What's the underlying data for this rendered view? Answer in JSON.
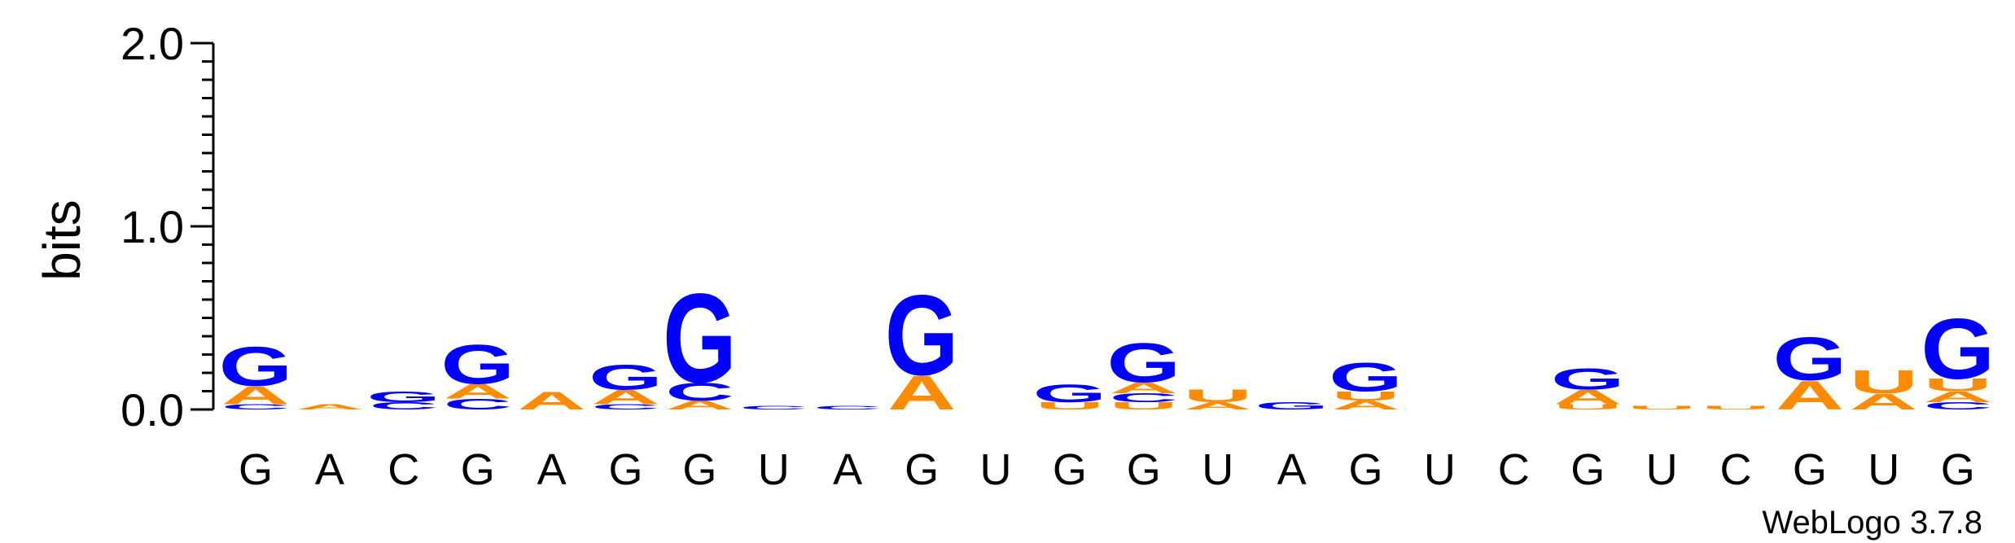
{
  "chart_data": {
    "type": "sequence-logo",
    "ylabel": "bits",
    "ylim": [
      0,
      2.0
    ],
    "yticks": [
      "0.0",
      "1.0",
      "2.0"
    ],
    "yminor_step": 0.1,
    "colors": {
      "G": "#0000ff",
      "A": "#ff8c00",
      "C": "#0000ff",
      "U": "#ff8c00"
    },
    "positions": [
      {
        "label": "G",
        "stack": [
          {
            "letter": "C",
            "bits": 0.03
          },
          {
            "letter": "A",
            "bits": 0.1
          },
          {
            "letter": "G",
            "bits": 0.22
          }
        ]
      },
      {
        "label": "A",
        "stack": [
          {
            "letter": "A",
            "bits": 0.03
          }
        ]
      },
      {
        "label": "C",
        "stack": [
          {
            "letter": "C",
            "bits": 0.04
          },
          {
            "letter": "G",
            "bits": 0.06
          }
        ]
      },
      {
        "label": "G",
        "stack": [
          {
            "letter": "C",
            "bits": 0.06
          },
          {
            "letter": "A",
            "bits": 0.08
          },
          {
            "letter": "G",
            "bits": 0.22
          }
        ]
      },
      {
        "label": "A",
        "stack": [
          {
            "letter": "A",
            "bits": 0.1
          }
        ]
      },
      {
        "label": "G",
        "stack": [
          {
            "letter": "C",
            "bits": 0.03
          },
          {
            "letter": "A",
            "bits": 0.08
          },
          {
            "letter": "G",
            "bits": 0.14
          }
        ]
      },
      {
        "label": "G",
        "stack": [
          {
            "letter": "A",
            "bits": 0.05
          },
          {
            "letter": "C",
            "bits": 0.1
          },
          {
            "letter": "G",
            "bits": 0.5
          }
        ]
      },
      {
        "label": "U",
        "stack": [
          {
            "letter": "C",
            "bits": 0.02
          }
        ]
      },
      {
        "label": "A",
        "stack": [
          {
            "letter": "C",
            "bits": 0.02
          }
        ]
      },
      {
        "label": "G",
        "stack": [
          {
            "letter": "A",
            "bits": 0.19
          },
          {
            "letter": "G",
            "bits": 0.45
          }
        ]
      },
      {
        "label": "U",
        "stack": []
      },
      {
        "label": "G",
        "stack": [
          {
            "letter": "U",
            "bits": 0.04
          },
          {
            "letter": "G",
            "bits": 0.1
          }
        ]
      },
      {
        "label": "G",
        "stack": [
          {
            "letter": "U",
            "bits": 0.04
          },
          {
            "letter": "C",
            "bits": 0.05
          },
          {
            "letter": "A",
            "bits": 0.06
          },
          {
            "letter": "G",
            "bits": 0.22
          }
        ]
      },
      {
        "label": "U",
        "stack": [
          {
            "letter": "A",
            "bits": 0.04
          },
          {
            "letter": "U",
            "bits": 0.07
          }
        ]
      },
      {
        "label": "A",
        "stack": [
          {
            "letter": "G",
            "bits": 0.04
          }
        ]
      },
      {
        "label": "G",
        "stack": [
          {
            "letter": "A",
            "bits": 0.05
          },
          {
            "letter": "U",
            "bits": 0.05
          },
          {
            "letter": "G",
            "bits": 0.16
          }
        ]
      },
      {
        "label": "U",
        "stack": []
      },
      {
        "label": "C",
        "stack": []
      },
      {
        "label": "G",
        "stack": [
          {
            "letter": "U",
            "bits": 0.03
          },
          {
            "letter": "A",
            "bits": 0.08
          },
          {
            "letter": "G",
            "bits": 0.12
          }
        ]
      },
      {
        "label": "U",
        "stack": [
          {
            "letter": "U",
            "bits": 0.02
          }
        ]
      },
      {
        "label": "C",
        "stack": [
          {
            "letter": "U",
            "bits": 0.02
          }
        ]
      },
      {
        "label": "G",
        "stack": [
          {
            "letter": "A",
            "bits": 0.16
          },
          {
            "letter": "G",
            "bits": 0.24
          }
        ]
      },
      {
        "label": "U",
        "stack": [
          {
            "letter": "A",
            "bits": 0.09
          },
          {
            "letter": "U",
            "bits": 0.13
          }
        ]
      },
      {
        "label": "G",
        "stack": [
          {
            "letter": "C",
            "bits": 0.04
          },
          {
            "letter": "A",
            "bits": 0.06
          },
          {
            "letter": "U",
            "bits": 0.07
          },
          {
            "letter": "G",
            "bits": 0.34
          }
        ]
      }
    ]
  },
  "footer": {
    "credit": "WebLogo 3.7.8"
  }
}
